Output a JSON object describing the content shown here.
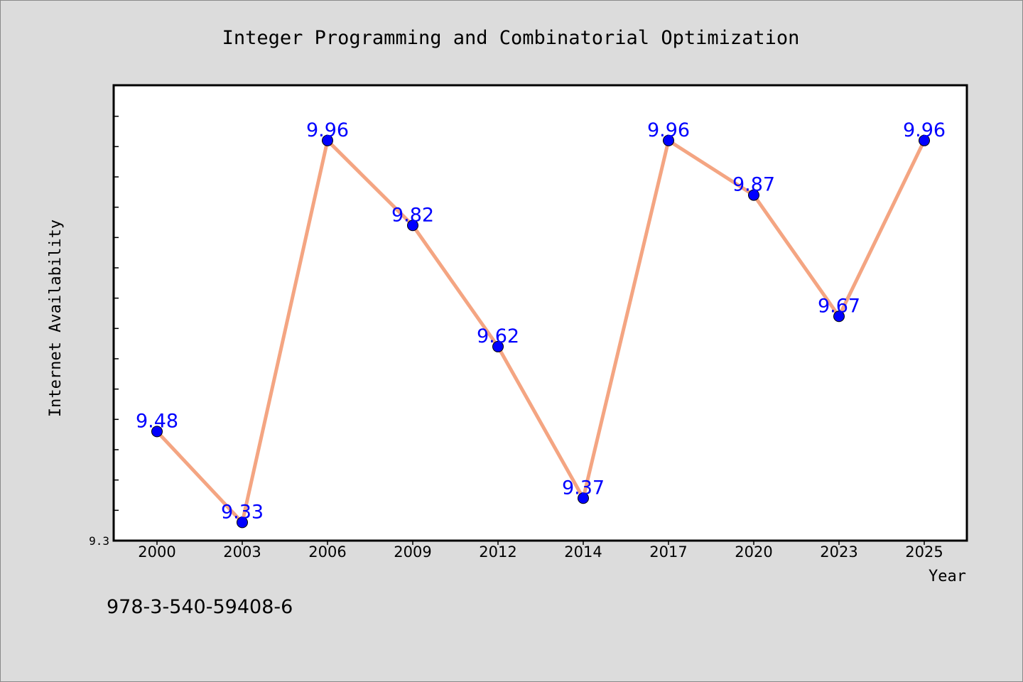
{
  "chart_data": {
    "type": "line",
    "title": "Integer Programming and Combinatorial Optimization",
    "xlabel": "Year",
    "ylabel": "Internet Availability",
    "categories": [
      "2000",
      "2003",
      "2006",
      "2009",
      "2012",
      "2014",
      "2017",
      "2020",
      "2023",
      "2025"
    ],
    "series": [
      {
        "values": [
          9.48,
          9.33,
          9.96,
          9.82,
          9.62,
          9.37,
          9.96,
          9.87,
          9.67,
          9.96
        ]
      }
    ],
    "ylim": [
      9.3,
      10.05
    ],
    "y_tick_labels": [
      "9.3"
    ],
    "line_color": "#f4a582",
    "marker_color": "#0000ff",
    "label_color": "#0000ff",
    "grid": false
  },
  "footer": {
    "text": "978-3-540-59408-6"
  }
}
